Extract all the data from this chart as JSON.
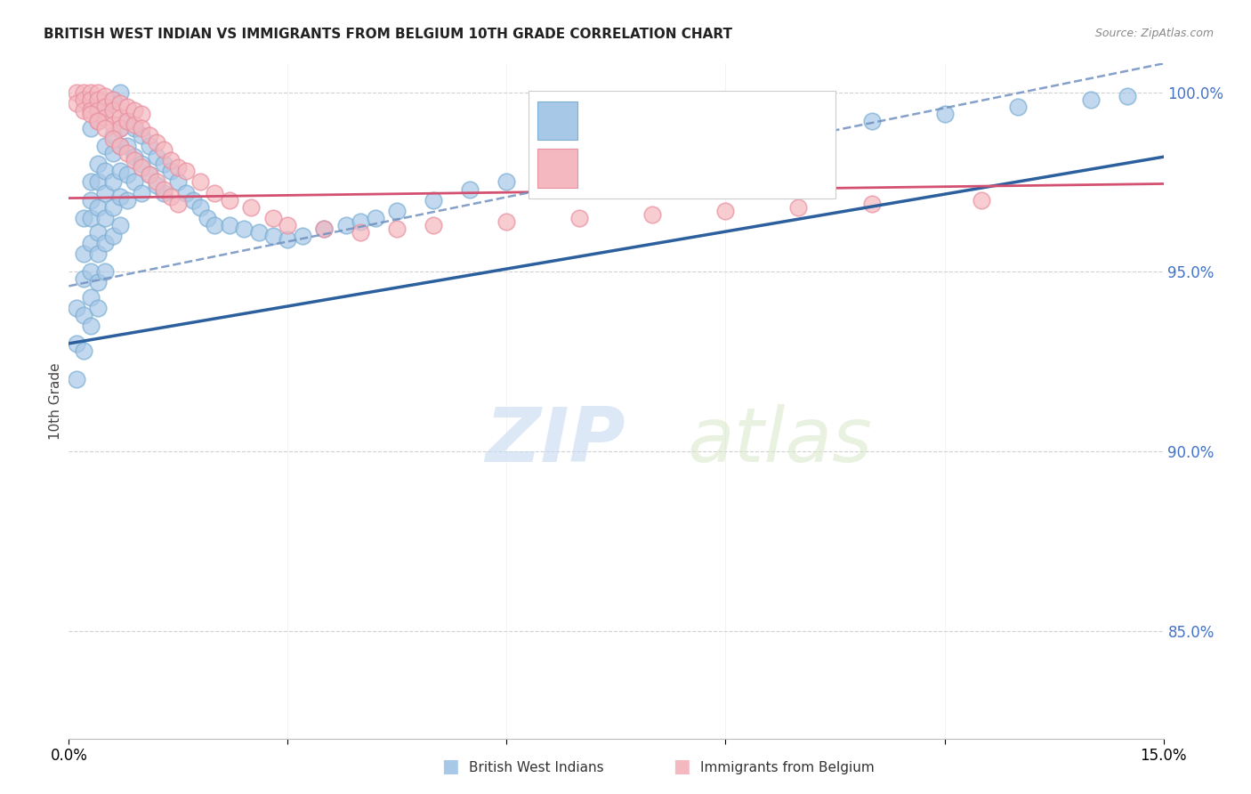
{
  "title": "BRITISH WEST INDIAN VS IMMIGRANTS FROM BELGIUM 10TH GRADE CORRELATION CHART",
  "source": "Source: ZipAtlas.com",
  "ylabel": "10th Grade",
  "x_min": 0.0,
  "x_max": 0.15,
  "y_min": 0.82,
  "y_max": 1.008,
  "y_ticks": [
    0.85,
    0.9,
    0.95,
    1.0
  ],
  "y_tick_labels": [
    "85.0%",
    "90.0%",
    "95.0%",
    "100.0%"
  ],
  "blue_color": "#a8c8e8",
  "blue_edge_color": "#7bafd4",
  "pink_color": "#f4b8c0",
  "pink_edge_color": "#e890a0",
  "blue_line_color": "#2c5f9e",
  "pink_line_color": "#d45070",
  "blue_dash_color": "#7090c0",
  "label1": "British West Indians",
  "label2": "Immigrants from Belgium",
  "watermark": "ZIPatlas",
  "blue_scatter_x": [
    0.001,
    0.001,
    0.001,
    0.002,
    0.002,
    0.002,
    0.002,
    0.002,
    0.003,
    0.003,
    0.003,
    0.003,
    0.003,
    0.003,
    0.003,
    0.004,
    0.004,
    0.004,
    0.004,
    0.004,
    0.004,
    0.004,
    0.005,
    0.005,
    0.005,
    0.005,
    0.005,
    0.005,
    0.006,
    0.006,
    0.006,
    0.006,
    0.006,
    0.007,
    0.007,
    0.007,
    0.007,
    0.007,
    0.008,
    0.008,
    0.008,
    0.008,
    0.009,
    0.009,
    0.009,
    0.01,
    0.01,
    0.01,
    0.011,
    0.011,
    0.012,
    0.012,
    0.013,
    0.013,
    0.014,
    0.015,
    0.016,
    0.017,
    0.018,
    0.019,
    0.02,
    0.022,
    0.024,
    0.026,
    0.028,
    0.03,
    0.032,
    0.035,
    0.038,
    0.04,
    0.042,
    0.045,
    0.05,
    0.055,
    0.06,
    0.065,
    0.07,
    0.08,
    0.09,
    0.1,
    0.11,
    0.12,
    0.13,
    0.14,
    0.145,
    0.003,
    0.004,
    0.005,
    0.006,
    0.007
  ],
  "blue_scatter_y": [
    0.94,
    0.93,
    0.92,
    0.965,
    0.955,
    0.948,
    0.938,
    0.928,
    0.975,
    0.97,
    0.965,
    0.958,
    0.95,
    0.943,
    0.935,
    0.98,
    0.975,
    0.968,
    0.961,
    0.955,
    0.947,
    0.94,
    0.985,
    0.978,
    0.972,
    0.965,
    0.958,
    0.95,
    0.988,
    0.983,
    0.975,
    0.968,
    0.96,
    0.99,
    0.985,
    0.978,
    0.971,
    0.963,
    0.992,
    0.985,
    0.977,
    0.97,
    0.99,
    0.982,
    0.975,
    0.988,
    0.98,
    0.972,
    0.985,
    0.977,
    0.982,
    0.974,
    0.98,
    0.972,
    0.978,
    0.975,
    0.972,
    0.97,
    0.968,
    0.965,
    0.963,
    0.963,
    0.962,
    0.961,
    0.96,
    0.959,
    0.96,
    0.962,
    0.963,
    0.964,
    0.965,
    0.967,
    0.97,
    0.973,
    0.975,
    0.978,
    0.98,
    0.985,
    0.988,
    0.99,
    0.992,
    0.994,
    0.996,
    0.998,
    0.999,
    0.99,
    0.993,
    0.996,
    0.998,
    1.0
  ],
  "pink_scatter_x": [
    0.001,
    0.001,
    0.002,
    0.002,
    0.002,
    0.003,
    0.003,
    0.003,
    0.004,
    0.004,
    0.004,
    0.004,
    0.005,
    0.005,
    0.005,
    0.006,
    0.006,
    0.006,
    0.007,
    0.007,
    0.007,
    0.008,
    0.008,
    0.009,
    0.009,
    0.01,
    0.01,
    0.011,
    0.012,
    0.013,
    0.014,
    0.015,
    0.016,
    0.018,
    0.02,
    0.022,
    0.025,
    0.028,
    0.03,
    0.035,
    0.04,
    0.045,
    0.05,
    0.06,
    0.07,
    0.08,
    0.09,
    0.1,
    0.11,
    0.125,
    0.003,
    0.004,
    0.005,
    0.006,
    0.007,
    0.008,
    0.009,
    0.01,
    0.011,
    0.012,
    0.013,
    0.014,
    0.015
  ],
  "pink_scatter_y": [
    1.0,
    0.997,
    1.0,
    0.998,
    0.995,
    1.0,
    0.998,
    0.995,
    1.0,
    0.998,
    0.995,
    0.992,
    0.999,
    0.996,
    0.993,
    0.998,
    0.995,
    0.991,
    0.997,
    0.993,
    0.99,
    0.996,
    0.992,
    0.995,
    0.991,
    0.994,
    0.99,
    0.988,
    0.986,
    0.984,
    0.981,
    0.979,
    0.978,
    0.975,
    0.972,
    0.97,
    0.968,
    0.965,
    0.963,
    0.962,
    0.961,
    0.962,
    0.963,
    0.964,
    0.965,
    0.966,
    0.967,
    0.968,
    0.969,
    0.97,
    0.994,
    0.992,
    0.99,
    0.987,
    0.985,
    0.983,
    0.981,
    0.979,
    0.977,
    0.975,
    0.973,
    0.971,
    0.969
  ]
}
